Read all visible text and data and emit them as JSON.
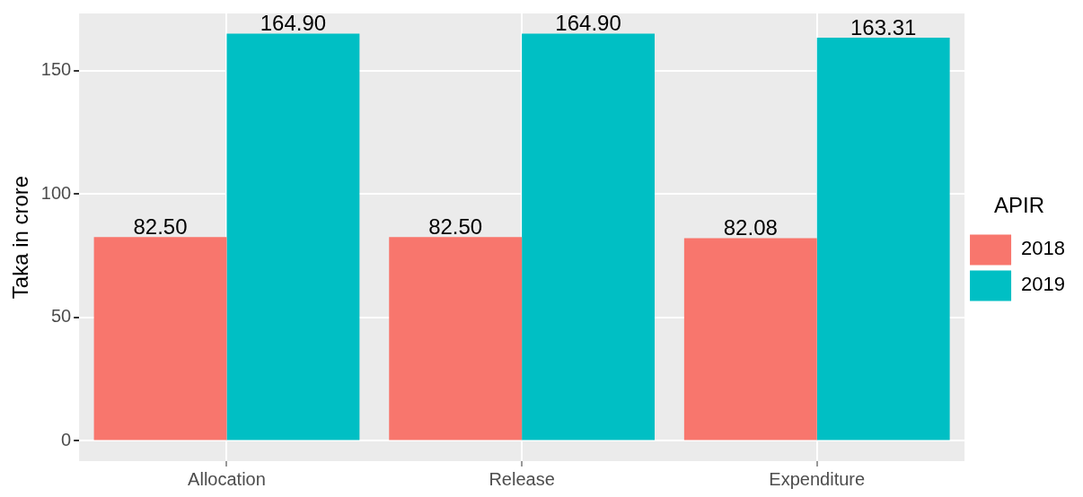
{
  "chart_data": {
    "type": "bar",
    "ylabel": "Taka in crore",
    "legend_title": "APIR",
    "categories": [
      "Allocation",
      "Release",
      "Expenditure"
    ],
    "series": [
      {
        "name": "2018",
        "color": "#f8766d",
        "values": [
          82.5,
          82.5,
          82.08
        ]
      },
      {
        "name": "2019",
        "color": "#00bfc4",
        "values": [
          164.9,
          164.9,
          163.31
        ]
      }
    ],
    "value_labels": [
      [
        "82.50",
        "82.50",
        "82.08"
      ],
      [
        "164.90",
        "164.90",
        "163.31"
      ]
    ],
    "ylim": [
      -8.2,
      173.1
    ],
    "yticks": [
      0,
      50,
      100,
      150
    ],
    "grid": true,
    "legend": "right"
  }
}
